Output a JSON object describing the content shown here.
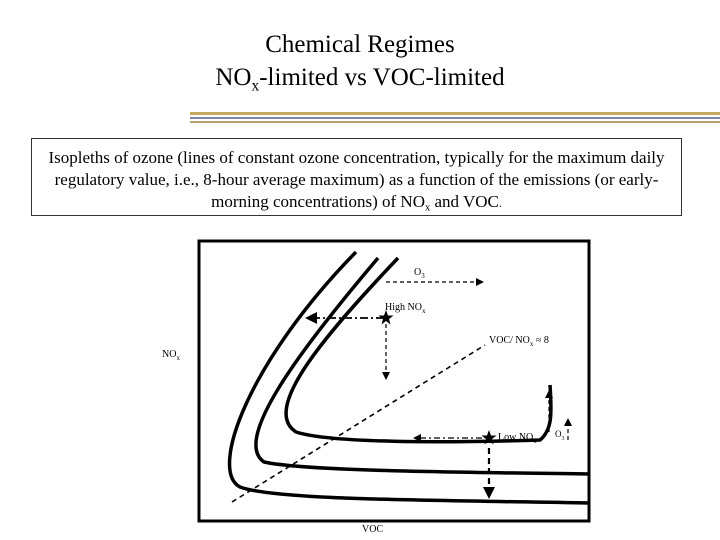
{
  "header": {
    "title_line1": "Chemical Regimes",
    "title_line2_main": "NO",
    "title_line2_sub": "x",
    "title_line2_rest": "-limited vs VOC-limited"
  },
  "description": {
    "text_main": "Isopleths of ozone (lines of constant ozone concentration, typically for the maximum daily regulatory value, i.e., 8-hour average maximum) as a function of the emissions (or early-morning concentrations) of NO",
    "text_sub": "x",
    "text_mid": " and VOC",
    "text_end": "."
  },
  "diagram": {
    "y_axis_label": "NO",
    "y_axis_label_sub": "x",
    "x_axis_label": "VOC",
    "o3_top_label": "O",
    "o3_top_sub": "3",
    "high_nox_label": "High NO",
    "high_nox_sub": "x",
    "ratio_label": "VOC/ NO",
    "ratio_sub": "x",
    "ratio_value": " ≈ 8",
    "low_nox_label": "Low NO",
    "low_nox_sub": "x",
    "o3_right_label": "O",
    "o3_right_sub": "3"
  }
}
